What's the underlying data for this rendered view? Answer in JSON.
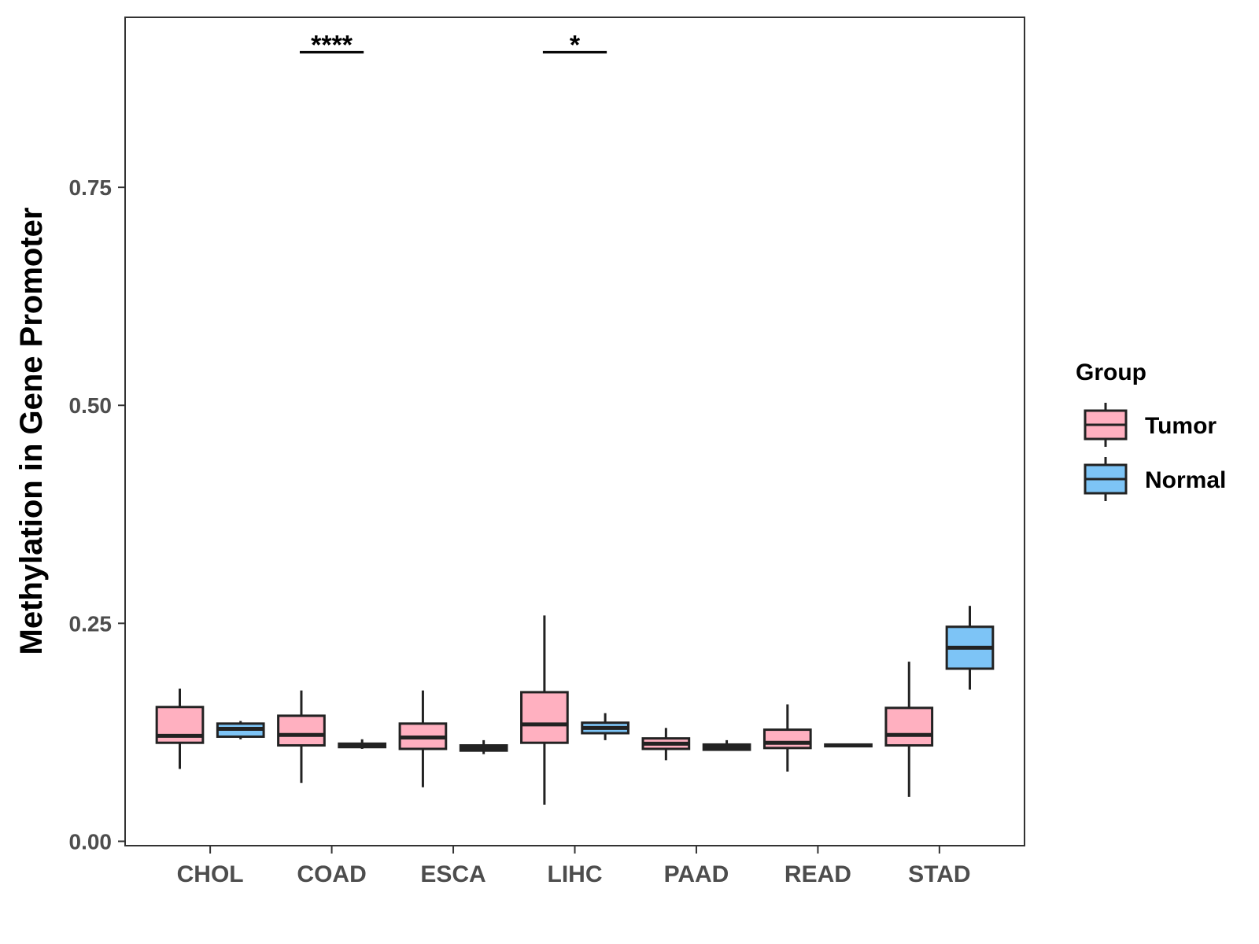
{
  "chart_data": {
    "type": "boxplot",
    "title": "",
    "xlabel": "",
    "ylabel": "Methylation in Gene Promoter",
    "ylim": [
      -0.005,
      0.945
    ],
    "yticks": [
      0.0,
      0.25,
      0.5,
      0.75
    ],
    "ytick_labels": [
      "0.00",
      "0.25",
      "0.50",
      "0.75"
    ],
    "categories": [
      "CHOL",
      "COAD",
      "ESCA",
      "LIHC",
      "PAAD",
      "READ",
      "STAD"
    ],
    "legend": {
      "title": "Group",
      "position": "right",
      "entries": [
        {
          "name": "Tumor",
          "color": "#FFB0C0"
        },
        {
          "name": "Normal",
          "color": "#7DC4F6"
        }
      ]
    },
    "series": [
      {
        "name": "Tumor",
        "color": "#FFB0C0",
        "boxes": [
          {
            "category": "CHOL",
            "min": 0.083,
            "q1": 0.113,
            "median": 0.121,
            "q3": 0.154,
            "max": 0.175
          },
          {
            "category": "COAD",
            "min": 0.067,
            "q1": 0.11,
            "median": 0.122,
            "q3": 0.144,
            "max": 0.173
          },
          {
            "category": "ESCA",
            "min": 0.062,
            "q1": 0.106,
            "median": 0.119,
            "q3": 0.135,
            "max": 0.173
          },
          {
            "category": "LIHC",
            "min": 0.042,
            "q1": 0.113,
            "median": 0.134,
            "q3": 0.171,
            "max": 0.259
          },
          {
            "category": "PAAD",
            "min": 0.093,
            "q1": 0.106,
            "median": 0.112,
            "q3": 0.118,
            "max": 0.13
          },
          {
            "category": "READ",
            "min": 0.08,
            "q1": 0.107,
            "median": 0.113,
            "q3": 0.128,
            "max": 0.157
          },
          {
            "category": "STAD",
            "min": 0.051,
            "q1": 0.11,
            "median": 0.122,
            "q3": 0.153,
            "max": 0.206
          }
        ]
      },
      {
        "name": "Normal",
        "color": "#7DC4F6",
        "boxes": [
          {
            "category": "CHOL",
            "min": 0.117,
            "q1": 0.12,
            "median": 0.129,
            "q3": 0.135,
            "max": 0.138
          },
          {
            "category": "COAD",
            "min": 0.106,
            "q1": 0.108,
            "median": 0.11,
            "q3": 0.112,
            "max": 0.117
          },
          {
            "category": "ESCA",
            "min": 0.1,
            "q1": 0.104,
            "median": 0.107,
            "q3": 0.11,
            "max": 0.116
          },
          {
            "category": "LIHC",
            "min": 0.116,
            "q1": 0.124,
            "median": 0.13,
            "q3": 0.136,
            "max": 0.147
          },
          {
            "category": "PAAD",
            "min": 0.104,
            "q1": 0.105,
            "median": 0.108,
            "q3": 0.111,
            "max": 0.116
          },
          {
            "category": "READ",
            "min": 0.108,
            "q1": 0.109,
            "median": 0.11,
            "q3": 0.111,
            "max": 0.112
          },
          {
            "category": "STAD",
            "min": 0.174,
            "q1": 0.198,
            "median": 0.222,
            "q3": 0.246,
            "max": 0.27
          }
        ]
      }
    ],
    "annotations": [
      {
        "category": "COAD",
        "label": "****",
        "y": 0.905
      },
      {
        "category": "LIHC",
        "label": "*",
        "y": 0.905
      }
    ]
  }
}
